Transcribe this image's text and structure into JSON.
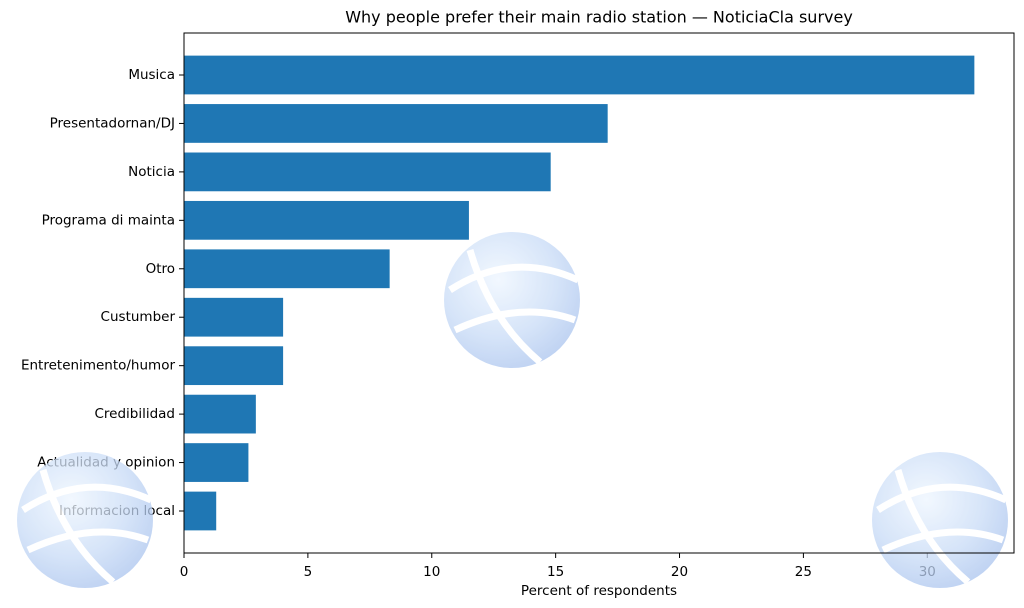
{
  "chart_data": {
    "type": "barh",
    "title": "Why people prefer their main radio station — NoticiaCla survey",
    "x_label": "Percent of respondents",
    "categories": [
      "Musica",
      "Presentadornan/DJ",
      "Noticia",
      "Programa di mainta",
      "Otro",
      "Custumber",
      "Entretenimento/humor",
      "Credibilidad",
      "Actualidad y opinion",
      "Informacion local"
    ],
    "values": [
      31.9,
      17.1,
      14.8,
      11.5,
      8.3,
      4.0,
      4.0,
      2.9,
      2.6,
      1.3
    ],
    "color": "#1f77b4",
    "xlim": [
      0,
      33.5
    ],
    "xticks": [
      0,
      5,
      10,
      15,
      20,
      25,
      30
    ]
  }
}
